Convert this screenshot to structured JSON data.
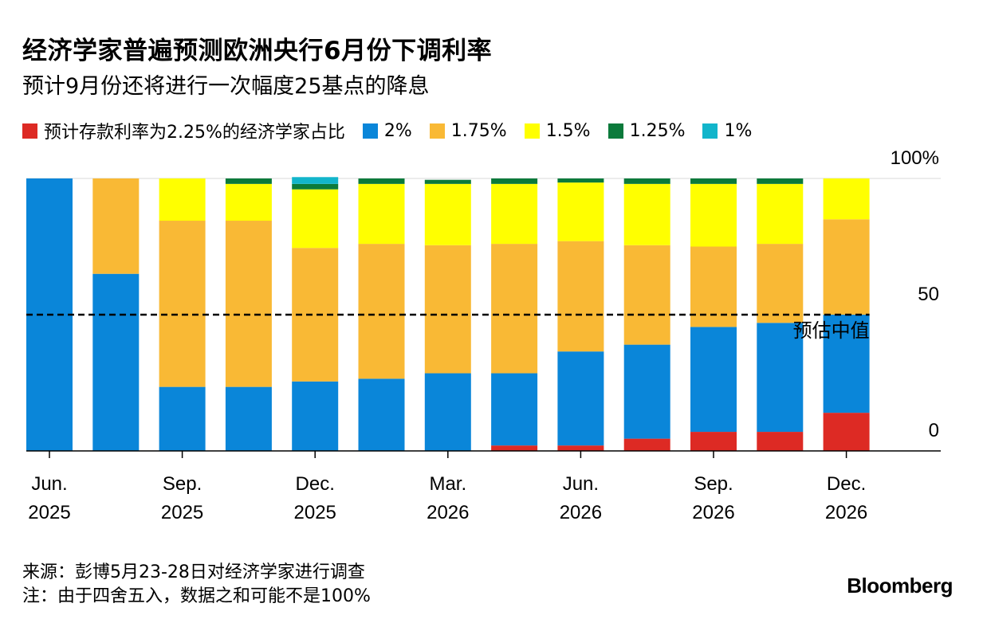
{
  "title": "经济学家普遍预测欧洲央行6月份下调利率",
  "subtitle": "预计9月份还将进行一次幅度25基点的降息",
  "legend": [
    {
      "label": "预计存款利率为2.25%的经济学家占比",
      "color": "#dd2a24"
    },
    {
      "label": "2%",
      "color": "#0a86d9"
    },
    {
      "label": "1.75%",
      "color": "#f9b935"
    },
    {
      "label": "1.5%",
      "color": "#ffff00"
    },
    {
      "label": "1.25%",
      "color": "#0b7a3b"
    },
    {
      "label": "1%",
      "color": "#12b5cb"
    }
  ],
  "source": "来源：彭博5月23-28日对经济学家进行调查",
  "note": "注：由于四舍五入，数据之和可能不是100%",
  "brand": "Bloomberg",
  "chart_data": {
    "type": "bar",
    "stacked": true,
    "ylim": [
      0,
      100
    ],
    "y_ticks": [
      {
        "value": 0,
        "label": "0"
      },
      {
        "value": 50,
        "label": "50"
      },
      {
        "value": 100,
        "label": "100%"
      }
    ],
    "x_tick_labels": [
      {
        "index": 0,
        "line1": "Jun.",
        "line2": "2025"
      },
      {
        "index": 2,
        "line1": "Sep.",
        "line2": "2025"
      },
      {
        "index": 4,
        "line1": "Dec.",
        "line2": "2025"
      },
      {
        "index": 6,
        "line1": "Mar.",
        "line2": "2026"
      },
      {
        "index": 8,
        "line1": "Jun.",
        "line2": "2026"
      },
      {
        "index": 10,
        "line1": "Sep.",
        "line2": "2026"
      },
      {
        "index": 12,
        "line1": "Dec.",
        "line2": "2026"
      }
    ],
    "bar_count": 13,
    "series": [
      {
        "name": "2.25%",
        "color": "#dd2a24",
        "values": [
          0,
          0,
          0,
          0,
          0,
          0,
          0,
          2,
          2,
          4.5,
          7,
          7,
          14
        ]
      },
      {
        "name": "2%",
        "color": "#0a86d9",
        "values": [
          100,
          65,
          23.5,
          23.5,
          25.5,
          26.5,
          28.5,
          26.5,
          34.5,
          34.5,
          38.5,
          40,
          36
        ]
      },
      {
        "name": "1.75%",
        "color": "#f9b935",
        "values": [
          0,
          35,
          61,
          61,
          49,
          49.5,
          47,
          47.5,
          40.5,
          36.5,
          29.5,
          29,
          35
        ]
      },
      {
        "name": "1.5%",
        "color": "#ffff00",
        "values": [
          0,
          0,
          15.5,
          13.5,
          21.5,
          22,
          22.5,
          22,
          21.5,
          22.5,
          23,
          22,
          15
        ]
      },
      {
        "name": "1.25%",
        "color": "#0b7a3b",
        "values": [
          0,
          0,
          0,
          2,
          2,
          2,
          1.5,
          2,
          1.5,
          2,
          2,
          2,
          0
        ]
      },
      {
        "name": "1%",
        "color": "#12b5cb",
        "values": [
          0,
          0,
          0,
          0,
          2.5,
          0,
          0,
          0,
          0,
          0,
          0,
          0,
          0
        ]
      }
    ],
    "median_line": {
      "value": 50,
      "label": "预估中值"
    }
  }
}
